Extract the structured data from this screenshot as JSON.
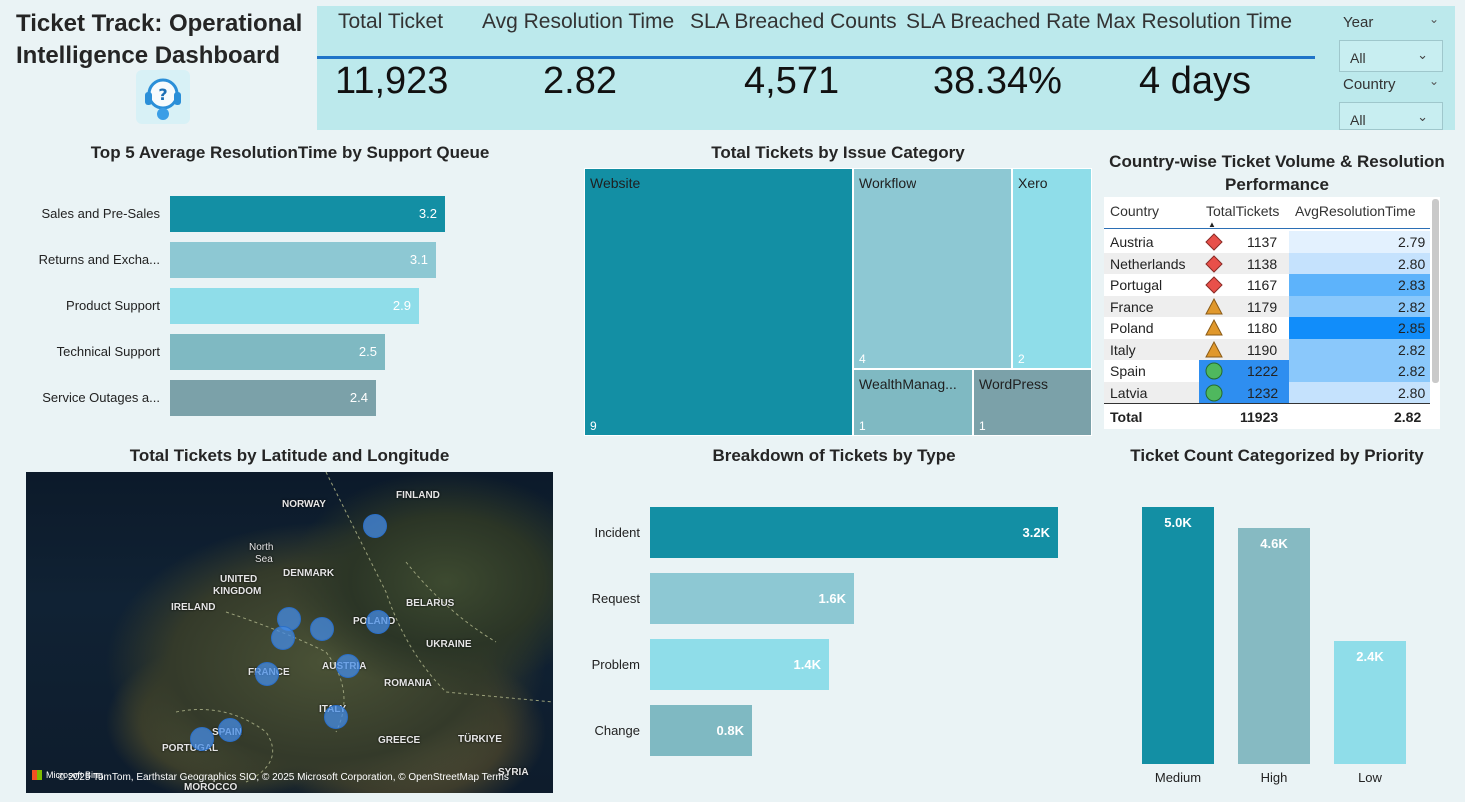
{
  "title": "Ticket Track: Operational Intelligence Dashboard",
  "kpis": [
    {
      "label": "Total Ticket",
      "value": "11,923"
    },
    {
      "label": "Avg Resolution Time",
      "value": "2.82"
    },
    {
      "label": "SLA Breached Counts",
      "value": "4,571"
    },
    {
      "label": "SLA Breached Rate",
      "value": "38.34%"
    },
    {
      "label": "Max Resolution Time",
      "value": "4 days"
    }
  ],
  "slicers": [
    {
      "label": "Year",
      "selected": "All"
    },
    {
      "label": "Country",
      "selected": "All"
    }
  ],
  "panels": {
    "top5_title": "Top 5 Average ResolutionTime by Support Queue",
    "treemap_title": "Total Tickets by Issue Category",
    "table_title_line1": "Country-wise Ticket Volume & Resolution",
    "table_title_line2": "Performance",
    "map_title": "Total Tickets by Latitude and Longitude",
    "type_title": "Breakdown of Tickets by Type",
    "priority_title": "Ticket Count Categorized by Priority"
  },
  "top5_queues": [
    {
      "label": "Sales and Pre-Sales",
      "value": 3.2,
      "display": "3.2",
      "color": "#138fa4"
    },
    {
      "label": "Returns and Excha...",
      "value": 3.1,
      "display": "3.1",
      "color": "#8dc8d3"
    },
    {
      "label": "Product Support",
      "value": 2.9,
      "display": "2.9",
      "color": "#8fdde9"
    },
    {
      "label": "Technical Support",
      "value": 2.5,
      "display": "2.5",
      "color": "#7fb9c2"
    },
    {
      "label": "Service Outages a...",
      "value": 2.4,
      "display": "2.4",
      "color": "#7ba1a9"
    }
  ],
  "treemap": [
    {
      "name": "Website",
      "count": "9"
    },
    {
      "name": "Workflow",
      "count": "4"
    },
    {
      "name": "Xero",
      "count": "2"
    },
    {
      "name": "WealthManag...",
      "count": "1"
    },
    {
      "name": "WordPress",
      "count": "1"
    }
  ],
  "country_table": {
    "headers": [
      "Country",
      "TotalTickets",
      "AvgResolutionTime"
    ],
    "rows": [
      {
        "country": "Austria",
        "icon": "red-diamond-icon",
        "tickets": "1137",
        "avg": "2.79",
        "shade": "#e3f1fe"
      },
      {
        "country": "Netherlands",
        "icon": "red-diamond-icon",
        "tickets": "1138",
        "avg": "2.80",
        "shade": "#c5e2fd"
      },
      {
        "country": "Portugal",
        "icon": "red-diamond-icon",
        "tickets": "1167",
        "avg": "2.83",
        "shade": "#5db3fb"
      },
      {
        "country": "France",
        "icon": "orange-triangle-icon",
        "tickets": "1179",
        "avg": "2.82",
        "shade": "#8ac8fb"
      },
      {
        "country": "Poland",
        "icon": "orange-triangle-icon",
        "tickets": "1180",
        "avg": "2.85",
        "shade": "#118dfa"
      },
      {
        "country": "Italy",
        "icon": "orange-triangle-icon",
        "tickets": "1190",
        "avg": "2.82",
        "shade": "#8ac8fb"
      },
      {
        "country": "Spain",
        "icon": "green-circle-icon",
        "tickets": "1222",
        "avg": "2.82",
        "shade": "#8ac8fb"
      },
      {
        "country": "Latvia",
        "icon": "green-circle-icon",
        "tickets": "1232",
        "avg": "2.80",
        "shade": "#c5e2fd"
      }
    ],
    "total": {
      "label": "Total",
      "tickets": "11923",
      "avg": "2.82"
    }
  },
  "map": {
    "labels": [
      "FINLAND",
      "NORWAY",
      "North",
      "Sea",
      "DENMARK",
      "UNITED",
      "KINGDOM",
      "IRELAND",
      "BELARUS",
      "POLAND",
      "UKRAINE",
      "FRANCE",
      "AUSTRIA",
      "ROMANIA",
      "ITALY",
      "SPAIN",
      "PORTUGAL",
      "GREECE",
      "TÜRKIYE",
      "SYRIA",
      "MOROCCO"
    ],
    "credit": "© 2025 TomTom, Earthstar Geographics SIO, © 2025 Microsoft Corporation, © OpenStreetMap  Terms",
    "bing": "Microsoft Bing"
  },
  "ticket_types": [
    {
      "label": "Incident",
      "value": 3.2,
      "display": "3.2K",
      "color": "#138fa4"
    },
    {
      "label": "Request",
      "value": 1.6,
      "display": "1.6K",
      "color": "#8dc8d3"
    },
    {
      "label": "Problem",
      "value": 1.4,
      "display": "1.4K",
      "color": "#8fdde9"
    },
    {
      "label": "Change",
      "value": 0.8,
      "display": "0.8K",
      "color": "#7fb9c2"
    }
  ],
  "priorities": [
    {
      "label": "Medium",
      "value": 5.0,
      "display": "5.0K",
      "color": "#138fa4"
    },
    {
      "label": "High",
      "value": 4.6,
      "display": "4.6K",
      "color": "#86bac2"
    },
    {
      "label": "Low",
      "value": 2.4,
      "display": "2.4K",
      "color": "#8fdde9"
    }
  ]
}
